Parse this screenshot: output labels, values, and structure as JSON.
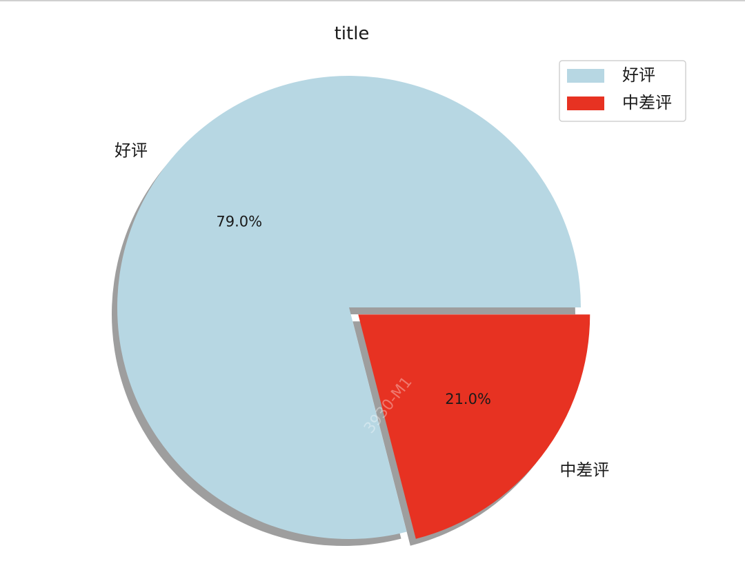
{
  "chart_data": {
    "type": "pie",
    "title": "title",
    "labels": [
      "好评",
      "中差评"
    ],
    "values": [
      79.0,
      21.0
    ],
    "percent_labels": [
      "79.0%",
      "21.0%"
    ],
    "colors": [
      "#b7d7e3",
      "#e73222"
    ],
    "explode": [
      0,
      0.05
    ],
    "shadow": true,
    "start_angle_deg": 0,
    "direction": "counterclockwise",
    "legend": {
      "position": "top-right",
      "entries": [
        "好评",
        "中差评"
      ]
    }
  },
  "watermark": "3930-M1"
}
